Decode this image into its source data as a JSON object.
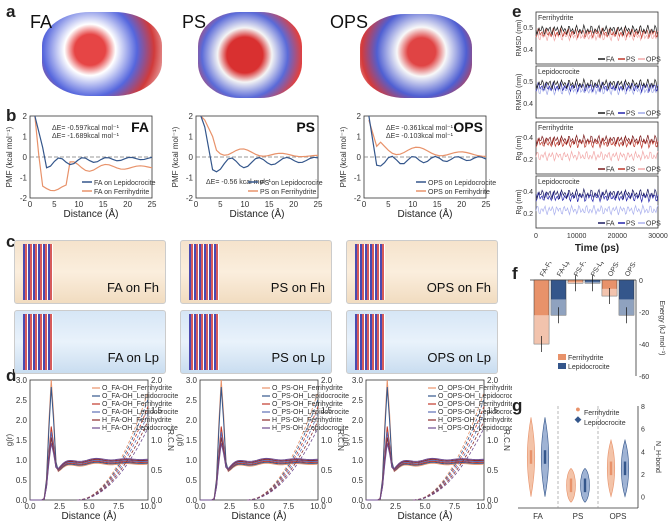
{
  "panels": {
    "a": "a",
    "b": "b",
    "c": "c",
    "d": "d",
    "e": "e",
    "f": "f",
    "g": "g"
  },
  "a": {
    "labels": [
      "FA",
      "PS",
      "OPS"
    ]
  },
  "b": {
    "ylabel": "PMF (kcal mol⁻¹)",
    "xlabel": "Distance (Å)",
    "xticks": [
      "0",
      "5",
      "10",
      "15",
      "20",
      "25"
    ],
    "yticks": [
      "2",
      "1",
      "0",
      "-1",
      "-2"
    ],
    "plots": [
      {
        "title": "FA",
        "ann1": "ΔE= -0.597kcal mol⁻¹",
        "ann2": "ΔE= -1.689kcal mol⁻¹",
        "legend": [
          "FA on Lepidocrocite",
          "FA on Ferrihydrite"
        ]
      },
      {
        "title": "PS",
        "ann1": "ΔE= -0.56 kcal mol⁻¹",
        "ann2": "",
        "legend": [
          "PS on Lepidocrocite",
          "PS on Ferrihydrite"
        ]
      },
      {
        "title": "OPS",
        "ann1": "ΔE= -0.361kcal mol⁻¹",
        "ann2": "ΔE= -0.103kcal mol⁻¹",
        "legend": [
          "OPS on Lepidocrocite",
          "OPS on Ferrihydrite"
        ]
      }
    ]
  },
  "c": {
    "labels": [
      "FA on Fh",
      "PS on Fh",
      "OPS on Fh",
      "FA on Lp",
      "PS on Lp",
      "OPS on Lp"
    ]
  },
  "d": {
    "ylabel_left": "g(r)",
    "ylabel_right": "R.C.N",
    "xlabel": "Distance (Å)",
    "xticks": [
      "0.0",
      "2.5",
      "5.0",
      "7.5",
      "10.0"
    ],
    "yticks_left": [
      "3.0",
      "2.5",
      "2.0",
      "1.5",
      "1.0",
      "0.5",
      "0.0"
    ],
    "yticks_right": [
      "2.0",
      "1.5",
      "1.0",
      "0.5",
      "0.0"
    ],
    "legends": [
      [
        "O_FA-OH_Ferrihydrite",
        "O_FA-OH_Lepidocrocite",
        "O_FA-OH_Ferrihydrite",
        "O_FA-OH_Lepidocrocite",
        "H_FA-OH_Ferrihydrite",
        "H_FA-OH_Lepidocrocite"
      ],
      [
        "O_PS-OH_Ferrihydrite",
        "O_PS-OH_Lepidocrocite",
        "O_PS-OH_Ferrihydrite",
        "O_PS-OH_Lepidocrocite",
        "H_PS-OH_Ferrihydrite",
        "H_PS-OH_Lepidocrocite"
      ],
      [
        "O_OPS-OH_Ferrihydrite",
        "O_OPS-OH_Lepidocrocite",
        "O_OPS-OH_Ferrihydrite",
        "O_OPS-OH_Lepidocrocite",
        "H_OPS-OH_Ferrihydrite",
        "H_OPS-OH_Lepidocrocite"
      ]
    ]
  },
  "e": {
    "subplots": [
      {
        "title": "Ferrihydrite",
        "ylabel": "RMSD (nm)",
        "yticks": [
          "0.5",
          "0.4"
        ]
      },
      {
        "title": "Lepidocrocite",
        "ylabel": "RMSD (nm)",
        "yticks": [
          "0.5",
          "0.4"
        ]
      },
      {
        "title": "Ferrihydrite",
        "ylabel": "Rg (nm)",
        "yticks": [
          "0.4",
          "0.2"
        ]
      },
      {
        "title": "Lepidocrocite",
        "ylabel": "Rg (nm)",
        "yticks": [
          "0.4",
          "0.2"
        ]
      }
    ],
    "legend": [
      "FA",
      "PS",
      "OPS"
    ],
    "xlabel": "Time (ps)",
    "xticks": [
      "0",
      "10000",
      "20000",
      "30000"
    ]
  },
  "f": {
    "categories": [
      "FA-Fh",
      "FA-Lp",
      "PS-Fh",
      "PS-Lp",
      "OPS-Fh",
      "OPS-Lp"
    ],
    "values": [
      -40,
      -22,
      -2,
      -2,
      -10,
      -22
    ],
    "ylabel": "Energy (kJ mol⁻¹)",
    "yticks": [
      "0",
      "-20",
      "-40",
      "-60"
    ],
    "legend": [
      "Ferrihydrite",
      "Lepidocrocite"
    ]
  },
  "g": {
    "categories": [
      "FA",
      "PS",
      "OPS"
    ],
    "ylabel": "N_H-bond",
    "yticks": [
      "8",
      "6",
      "4",
      "2",
      "0"
    ],
    "legend": [
      "Ferrihydrite",
      "Lepidocrocite"
    ]
  },
  "colors": {
    "fh": "#e8926a",
    "lp": "#34568b",
    "fh_light": "#f3c3a8",
    "lp_light": "#9fb3d4",
    "red": "#c0392b",
    "blue": "#2222aa"
  }
}
